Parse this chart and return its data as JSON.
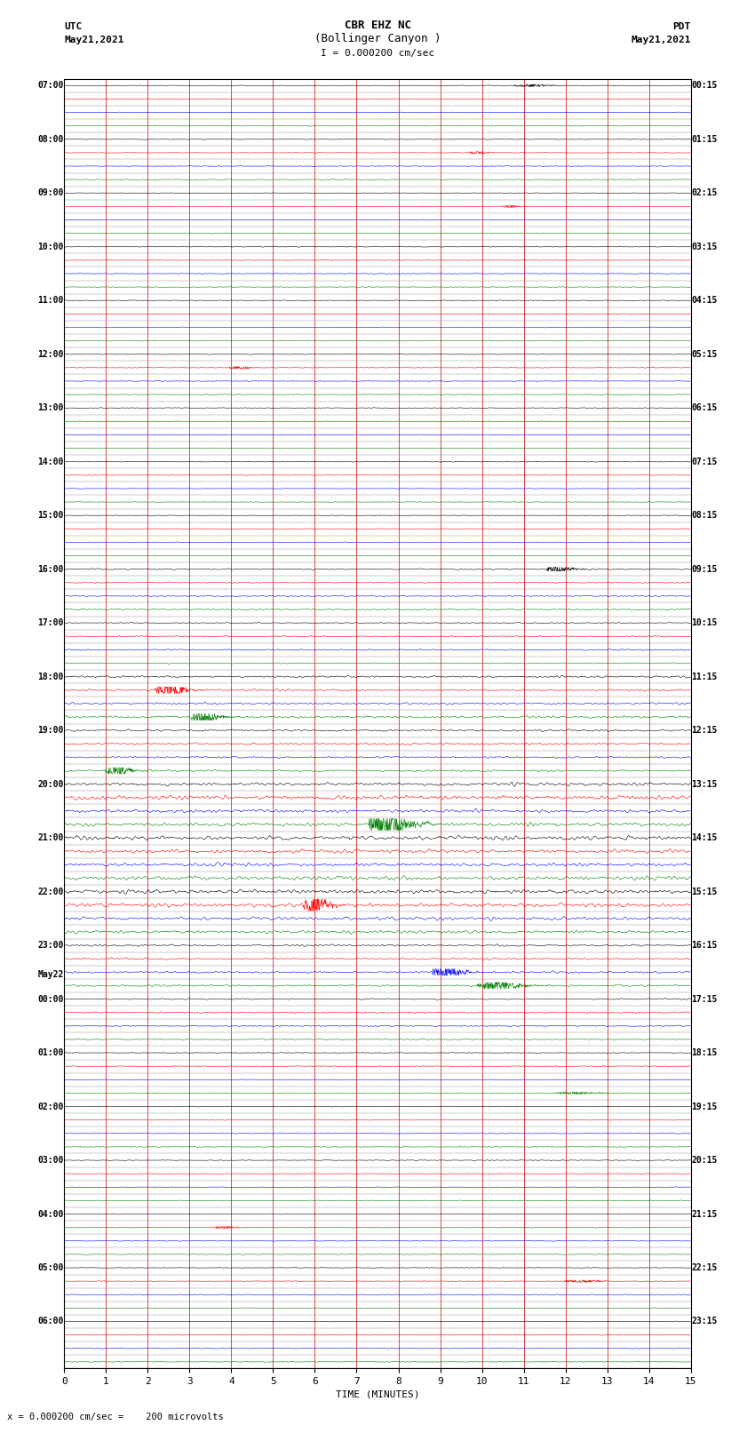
{
  "title_line1": "CBR EHZ NC",
  "title_line2": "(Bollinger Canyon )",
  "scale_label": "I = 0.000200 cm/sec",
  "left_label_top": "UTC",
  "left_label_date": "May21,2021",
  "right_label_top": "PDT",
  "right_label_date": "May21,2021",
  "bottom_label": "TIME (MINUTES)",
  "footer_label": "= 0.000200 cm/sec =    200 microvolts",
  "xlim": [
    0,
    15
  ],
  "xticks": [
    0,
    1,
    2,
    3,
    4,
    5,
    6,
    7,
    8,
    9,
    10,
    11,
    12,
    13,
    14,
    15
  ],
  "bg_color": "#ffffff",
  "line_colors": [
    "black",
    "red",
    "blue",
    "green"
  ],
  "vgrid_color": "#cc0000",
  "hgrid_color": "#888888",
  "num_rows": 96,
  "left_time_labels": [
    "07:00",
    "",
    "",
    "",
    "08:00",
    "",
    "",
    "",
    "09:00",
    "",
    "",
    "",
    "10:00",
    "",
    "",
    "",
    "11:00",
    "",
    "",
    "",
    "12:00",
    "",
    "",
    "",
    "13:00",
    "",
    "",
    "",
    "14:00",
    "",
    "",
    "",
    "15:00",
    "",
    "",
    "",
    "16:00",
    "",
    "",
    "",
    "17:00",
    "",
    "",
    "",
    "18:00",
    "",
    "",
    "",
    "19:00",
    "",
    "",
    "",
    "20:00",
    "",
    "",
    "",
    "21:00",
    "",
    "",
    "",
    "22:00",
    "",
    "",
    "",
    "23:00",
    "",
    "",
    "",
    "00:00",
    "",
    "",
    "",
    "01:00",
    "",
    "",
    "",
    "02:00",
    "",
    "",
    "",
    "03:00",
    "",
    "",
    "",
    "04:00",
    "",
    "",
    "",
    "05:00",
    "",
    "",
    "",
    "06:00",
    "",
    "",
    ""
  ],
  "may22_row": 68,
  "right_time_labels": [
    "00:15",
    "",
    "",
    "",
    "01:15",
    "",
    "",
    "",
    "02:15",
    "",
    "",
    "",
    "03:15",
    "",
    "",
    "",
    "04:15",
    "",
    "",
    "",
    "05:15",
    "",
    "",
    "",
    "06:15",
    "",
    "",
    "",
    "07:15",
    "",
    "",
    "",
    "08:15",
    "",
    "",
    "",
    "09:15",
    "",
    "",
    "",
    "10:15",
    "",
    "",
    "",
    "11:15",
    "",
    "",
    "",
    "12:15",
    "",
    "",
    "",
    "13:15",
    "",
    "",
    "",
    "14:15",
    "",
    "",
    "",
    "15:15",
    "",
    "",
    "",
    "16:15",
    "",
    "",
    "",
    "17:15",
    "",
    "",
    "",
    "18:15",
    "",
    "",
    "",
    "19:15",
    "",
    "",
    "",
    "20:15",
    "",
    "",
    "",
    "21:15",
    "",
    "",
    "",
    "22:15",
    "",
    "",
    "",
    "23:15",
    "",
    "",
    ""
  ],
  "amp_by_row": {
    "high": [
      52,
      53,
      54,
      55,
      56,
      57,
      58,
      59,
      60,
      61,
      62,
      63
    ],
    "medium_high": [
      44,
      45,
      46,
      47,
      48,
      49,
      50,
      51,
      64,
      65,
      66,
      67
    ],
    "medium": [
      36,
      37,
      38,
      39,
      40,
      41,
      42,
      43,
      68,
      69,
      70,
      71
    ]
  }
}
